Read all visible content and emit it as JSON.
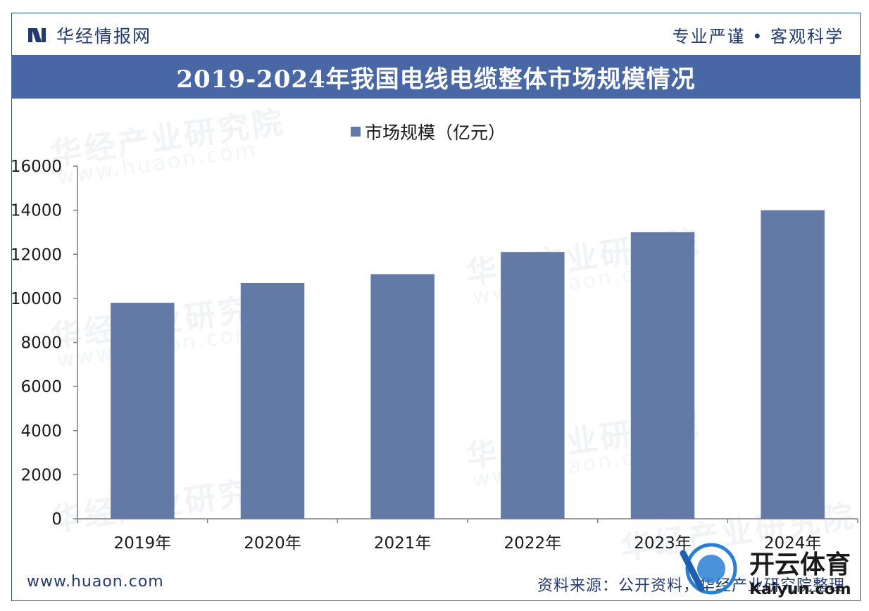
{
  "header": {
    "brand_name": "华经情报网",
    "slogan": "专业严谨 • 客观科学"
  },
  "watermark": {
    "text": "华经产业研究院",
    "subtext": "www.huaon.com"
  },
  "footer": {
    "website": "www.huaon.com",
    "source": "资料来源：公开资料，华经产业研究院整理"
  },
  "corner_logo": {
    "text": "开云体育",
    "subtext": "Kaiyun.com"
  },
  "colors": {
    "bar": "#647aa6",
    "title_band": "#4967a5",
    "brand": "#233a6e",
    "axis": "#7f7f7f"
  },
  "chart_data": {
    "type": "bar",
    "title": "2019-2024年我国电线电缆整体市场规模情况",
    "categories": [
      "2019年",
      "2020年",
      "2021年",
      "2022年",
      "2023年",
      "2024年"
    ],
    "series": [
      {
        "name": "市场规模（亿元）",
        "values": [
          9800,
          10700,
          11100,
          12100,
          13000,
          14000
        ]
      }
    ],
    "yticks": [
      "0",
      "2000",
      "4000",
      "6000",
      "8000",
      "10000",
      "12000",
      "14000",
      "16000"
    ],
    "ylim": [
      0,
      16000
    ],
    "legend_position": "top-center",
    "grid": false
  }
}
